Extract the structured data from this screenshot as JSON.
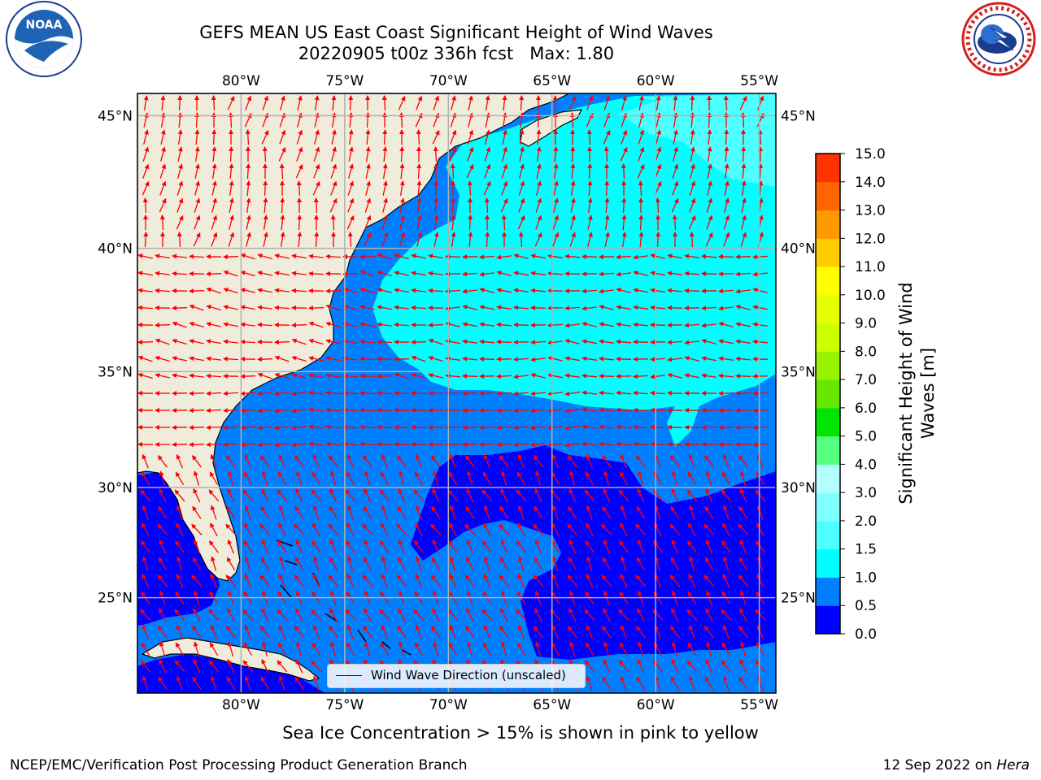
{
  "title": {
    "line1": "GEFS MEAN US East Coast Significant Height of Wind Waves",
    "line2": "20220905 t00z 336h fcst   Max: 1.80"
  },
  "map": {
    "lon_range": [
      -85,
      -54.2
    ],
    "lat_range": [
      20.5,
      45.8
    ],
    "lon_ticks": [
      "80°W",
      "75°W",
      "70°W",
      "65°W",
      "60°W",
      "55°W"
    ],
    "lon_tick_values": [
      -80,
      -75,
      -70,
      -65,
      -60,
      -55
    ],
    "lat_ticks": [
      "45°N",
      "40°N",
      "35°N",
      "30°N",
      "25°N"
    ],
    "lat_tick_values": [
      45,
      40,
      35,
      30,
      25
    ],
    "land_color": "#efecdc",
    "grid_color": "#b0b0b0",
    "arrow_color": "#ff0000"
  },
  "legend": {
    "label": "Wind Wave Direction (unscaled)"
  },
  "colorbar": {
    "label_line1": "Significant Height of Wind",
    "label_line2": "Waves [m]",
    "ticks": [
      "0.0",
      "0.5",
      "1.0",
      "1.5",
      "2.0",
      "3.0",
      "4.0",
      "5.0",
      "6.0",
      "7.0",
      "8.0",
      "9.0",
      "10.0",
      "11.0",
      "12.0",
      "13.0",
      "14.0",
      "15.0"
    ],
    "colors": [
      "#0000ff",
      "#0080ff",
      "#00ffff",
      "#4dffff",
      "#80ffff",
      "#b3ffff",
      "#55ff80",
      "#00e600",
      "#66e600",
      "#99f200",
      "#ccff00",
      "#e6ff00",
      "#ffff00",
      "#ffcc00",
      "#ff9900",
      "#ff6600",
      "#ff3300"
    ]
  },
  "seaice_note": "Sea Ice Concentration > 15% is shown in pink to yellow",
  "footer": {
    "left": "NCEP/EMC/Verification Post Processing Product Generation Branch",
    "right_date": "12 Sep 2022 on ",
    "right_machine": "Hera"
  },
  "logos": {
    "noaa_text": "NOAA",
    "nws_text": "NATIONAL WEATHER SERVICE"
  }
}
